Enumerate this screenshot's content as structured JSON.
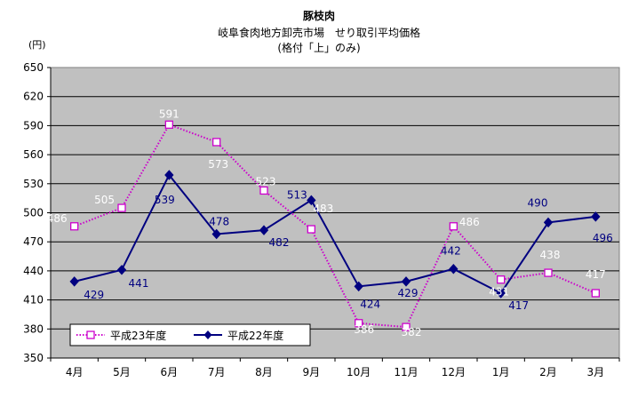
{
  "chart_data": {
    "type": "line",
    "title": "豚枝肉",
    "subtitle_line1": "岐阜食肉地方卸売市場　せり取引平均価格",
    "subtitle_line2": "(格付「上」のみ)",
    "ylabel": "(円)",
    "xlabel": "",
    "categories": [
      "4月",
      "5月",
      "6月",
      "7月",
      "8月",
      "9月",
      "10月",
      "11月",
      "12月",
      "1月",
      "2月",
      "3月"
    ],
    "ylim": [
      350,
      650
    ],
    "yticks": [
      350,
      380,
      410,
      440,
      470,
      500,
      530,
      560,
      590,
      620,
      650
    ],
    "grid": true,
    "legend_placement": "bottom-left",
    "series": [
      {
        "name": "平成23年度",
        "values": [
          486,
          505,
          591,
          573,
          523,
          483,
          386,
          382,
          486,
          431,
          438,
          417
        ],
        "color": "#cc00cc",
        "marker_fill": "#ffffff",
        "label_color": "#ffffff",
        "style": "dotted",
        "marker": "square"
      },
      {
        "name": "平成22年度",
        "values": [
          429,
          441,
          539,
          478,
          482,
          513,
          424,
          429,
          442,
          417,
          490,
          496
        ],
        "color": "#000080",
        "label_color": "#000080",
        "style": "solid",
        "marker": "diamond"
      }
    ]
  }
}
